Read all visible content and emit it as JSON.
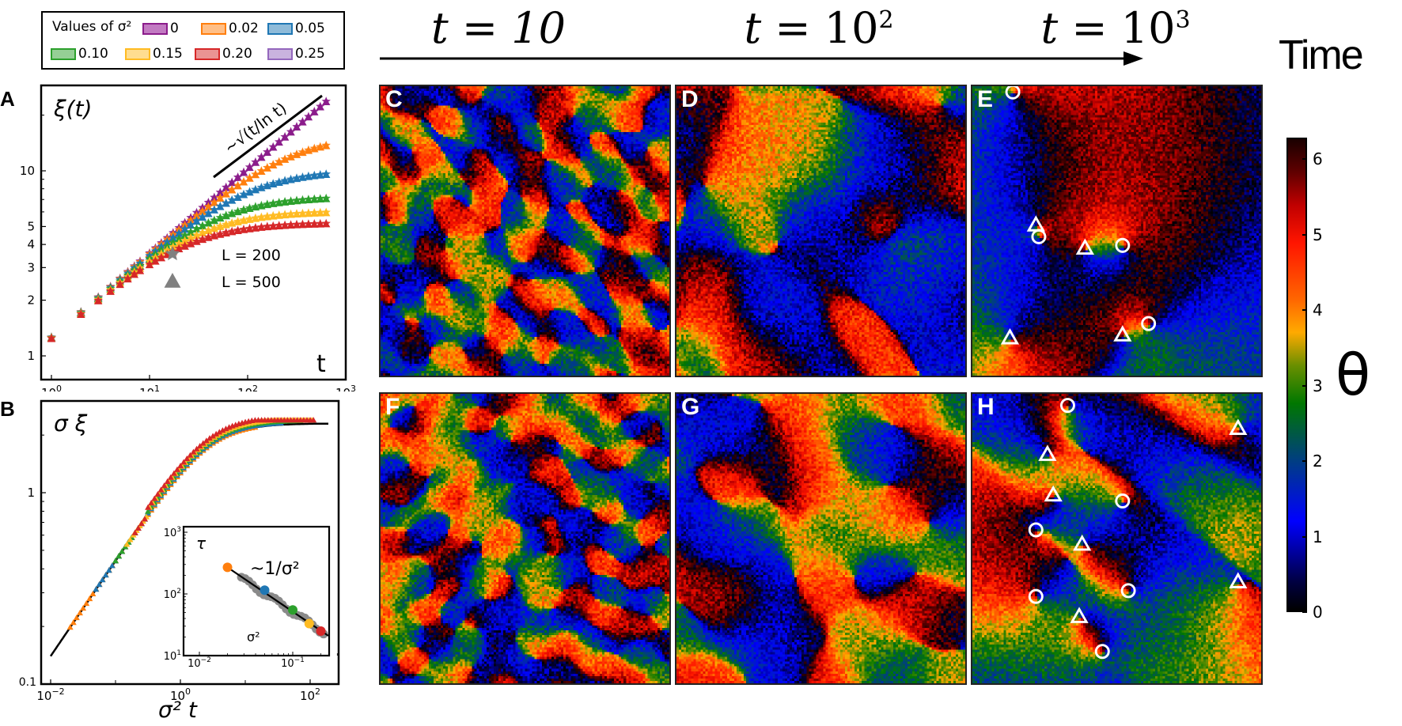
{
  "legend": {
    "title": "Values of σ²",
    "entries": [
      {
        "label": "0",
        "color": "#8b1c8b",
        "fill": "#c27ac2"
      },
      {
        "label": "0.02",
        "color": "#ff7f0e",
        "fill": "#ffbf87"
      },
      {
        "label": "0.05",
        "color": "#1f77b4",
        "fill": "#8fbbd9"
      },
      {
        "label": "0.10",
        "color": "#2ca02c",
        "fill": "#95cf95"
      },
      {
        "label": "0.15",
        "color": "#ffbb22",
        "fill": "#ffdd90"
      },
      {
        "label": "0.20",
        "color": "#d62728",
        "fill": "#ea9393"
      },
      {
        "label": "0.25",
        "color": "#9467bd",
        "fill": "#c9b3de"
      }
    ]
  },
  "time_axis": {
    "labels": [
      "t = 10",
      "t = 10²",
      "t = 10³"
    ],
    "arrow_label": "Time"
  },
  "colorbar": {
    "label": "θ",
    "ticks": [
      "0",
      "1",
      "2",
      "3",
      "4",
      "5",
      "6"
    ],
    "range": [
      0,
      6.283
    ]
  },
  "panels": {
    "A": {
      "letter": "A"
    },
    "B": {
      "letter": "B"
    },
    "C": {
      "letter": "C",
      "time": "t = 10",
      "row": "top"
    },
    "D": {
      "letter": "D",
      "time": "t = 10²",
      "row": "top"
    },
    "E": {
      "letter": "E",
      "time": "t = 10³",
      "row": "top"
    },
    "F": {
      "letter": "F",
      "time": "t = 10",
      "row": "bottom"
    },
    "G": {
      "letter": "G",
      "time": "t = 10²",
      "row": "bottom"
    },
    "H": {
      "letter": "H",
      "time": "t = 10³",
      "row": "bottom"
    }
  },
  "defects": {
    "E": {
      "circles": [
        [
          0.14,
          0.02
        ],
        [
          0.23,
          0.52
        ],
        [
          0.52,
          0.55
        ],
        [
          0.61,
          0.82
        ]
      ],
      "triangles": [
        [
          0.22,
          0.48
        ],
        [
          0.39,
          0.56
        ],
        [
          0.13,
          0.87
        ],
        [
          0.52,
          0.86
        ]
      ]
    },
    "H": {
      "circles": [
        [
          0.33,
          0.04
        ],
        [
          0.52,
          0.37
        ],
        [
          0.22,
          0.47
        ],
        [
          0.22,
          0.7
        ],
        [
          0.54,
          0.68
        ],
        [
          0.45,
          0.89
        ]
      ],
      "triangles": [
        [
          0.92,
          0.12
        ],
        [
          0.26,
          0.21
        ],
        [
          0.28,
          0.35
        ],
        [
          0.38,
          0.52
        ],
        [
          0.92,
          0.65
        ],
        [
          0.37,
          0.77
        ]
      ]
    }
  },
  "chart_data": [
    {
      "id": "A",
      "type": "scatter",
      "title": "ξ(t)",
      "xlabel": "t",
      "ylabel": "ξ(t)",
      "xscale": "log",
      "yscale": "log",
      "xlim": [
        0.9,
        1000
      ],
      "ylim": [
        0.85,
        30
      ],
      "xticks": [
        "10⁰",
        "10¹",
        "10²",
        "10³"
      ],
      "yticks": [
        "1",
        "2",
        "3",
        "4",
        "5",
        "10"
      ],
      "annotation": "~√(t/ln t)",
      "marker_legend": [
        {
          "marker": "star",
          "label": "L = 200"
        },
        {
          "marker": "triangle",
          "label": "L = 500"
        }
      ],
      "series": [
        {
          "name": "σ² = 0",
          "color": "#8b1c8b",
          "plateau": null,
          "final": 24.5
        },
        {
          "name": "σ² = 0.02",
          "color": "#ff7f0e",
          "plateau": 15.5,
          "final": 15.5
        },
        {
          "name": "σ² = 0.05",
          "color": "#1f77b4",
          "plateau": 10.0,
          "final": 10.0
        },
        {
          "name": "σ² = 0.10",
          "color": "#2ca02c",
          "plateau": 7.2,
          "final": 7.1
        },
        {
          "name": "σ² = 0.15",
          "color": "#ffbb22",
          "plateau": 6.0,
          "final": 5.9
        },
        {
          "name": "σ² = 0.20",
          "color": "#d62728",
          "plateau": 5.2,
          "final": 5.2
        }
      ],
      "shared_early_points": {
        "x": [
          1,
          2,
          3,
          4,
          5,
          6,
          7,
          8
        ],
        "y": [
          1.25,
          1.8,
          2.25,
          2.55,
          2.8,
          3.1,
          3.35,
          3.55
        ]
      }
    },
    {
      "id": "B",
      "type": "scatter",
      "title": "σ ξ",
      "xlabel": "σ² t",
      "ylabel": "σ ξ",
      "xscale": "log",
      "yscale": "log",
      "xlim": [
        0.007,
        200
      ],
      "ylim": [
        0.1,
        2.6
      ],
      "xticks": [
        "10⁻²",
        "10⁰",
        "10²"
      ],
      "yticks": [
        "0.1",
        "1"
      ],
      "collapse_curve_plateau": 2.3,
      "inset": {
        "type": "scatter",
        "xlabel": "σ²",
        "ylabel": "τ",
        "xscale": "log",
        "yscale": "log",
        "xticks": [
          "10⁻²",
          "10⁻¹"
        ],
        "yticks": [
          "10¹",
          "10²",
          "10³"
        ],
        "annotation": "~1/σ²",
        "points": [
          {
            "x": 0.02,
            "y": 270,
            "color": "#ff7f0e"
          },
          {
            "x": 0.05,
            "y": 115,
            "color": "#1f77b4"
          },
          {
            "x": 0.1,
            "y": 55,
            "color": "#2ca02c"
          },
          {
            "x": 0.15,
            "y": 33,
            "color": "#ffbb22"
          },
          {
            "x": 0.2,
            "y": 25,
            "color": "#d62728"
          }
        ]
      }
    }
  ]
}
